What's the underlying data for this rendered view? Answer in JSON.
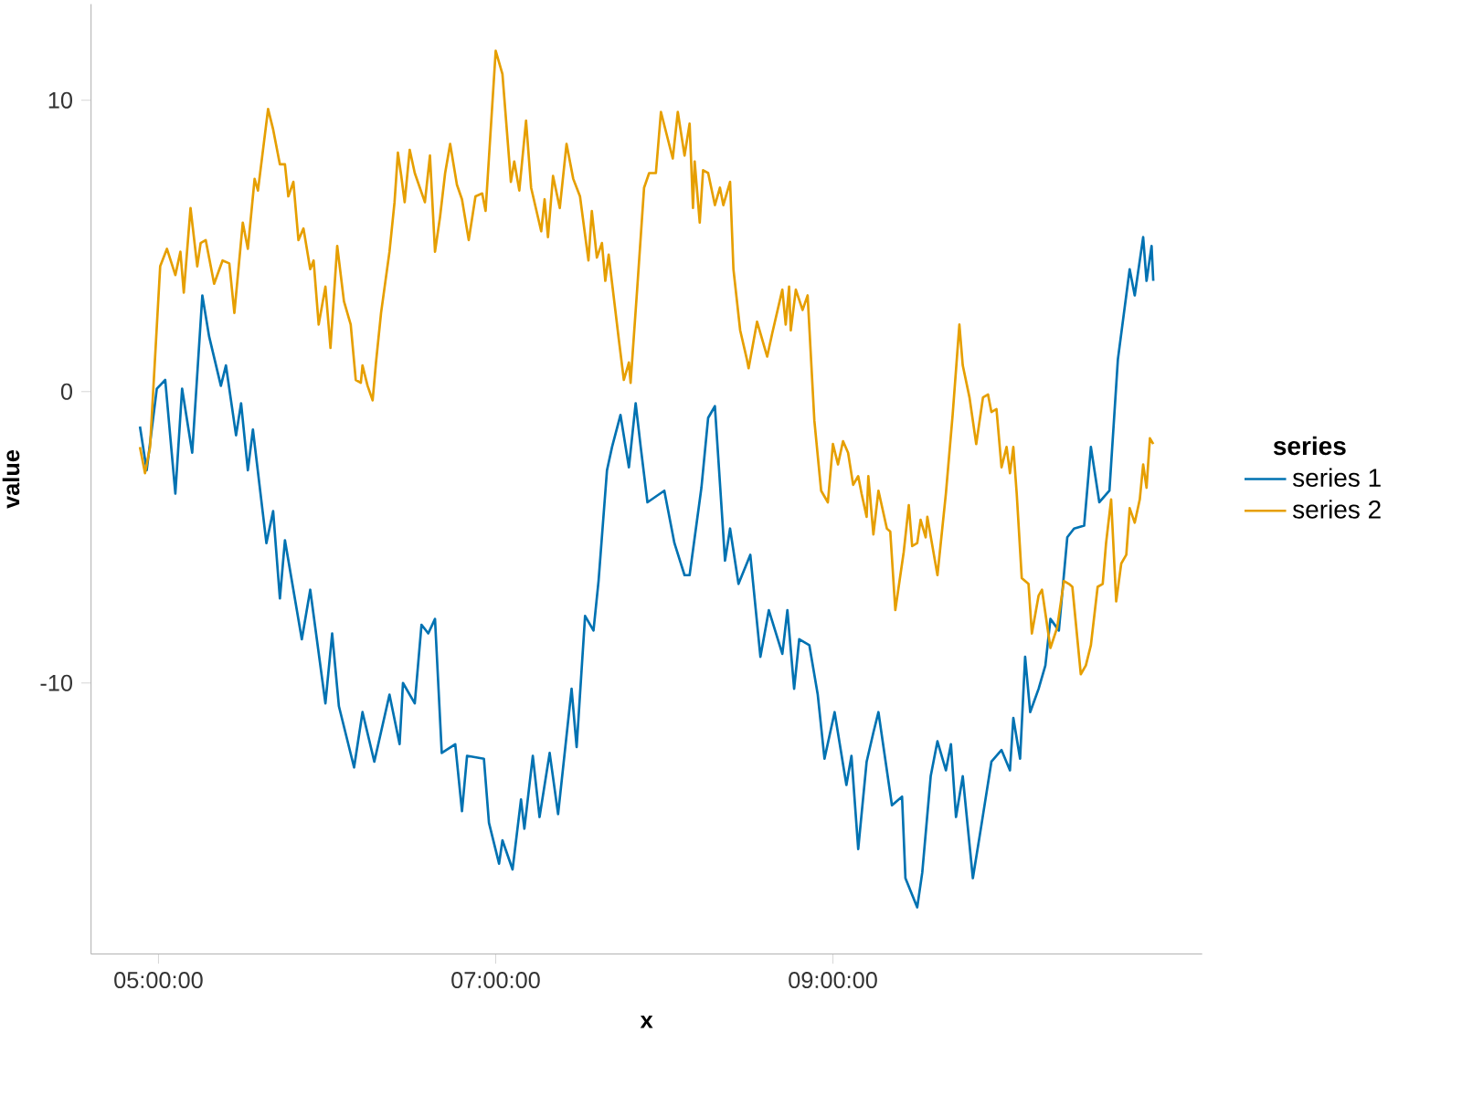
{
  "chart_data": {
    "type": "line",
    "xlabel": "x",
    "ylabel": "value",
    "legend_title": "series",
    "legend": "right",
    "xlim": [
      4.6,
      11.19
    ],
    "ylim": [
      -19.3,
      13.3
    ],
    "xticks": [
      {
        "value": 5,
        "label": "05:00:00"
      },
      {
        "value": 7,
        "label": "07:00:00"
      },
      {
        "value": 9,
        "label": "09:00:00"
      }
    ],
    "yticks": [
      -10,
      0,
      10
    ],
    "series": [
      {
        "name": "series 1",
        "color": "#0072b2",
        "x": [
          4.89,
          4.93,
          4.99,
          5.04,
          5.1,
          5.14,
          5.2,
          5.26,
          5.3,
          5.37,
          5.4,
          5.46,
          5.49,
          5.53,
          5.56,
          5.64,
          5.68,
          5.72,
          5.75,
          5.85,
          5.9,
          5.99,
          6.03,
          6.07,
          6.16,
          6.21,
          6.28,
          6.37,
          6.43,
          6.45,
          6.52,
          6.56,
          6.6,
          6.64,
          6.68,
          6.76,
          6.8,
          6.83,
          6.93,
          6.96,
          7.02,
          7.04,
          7.1,
          7.15,
          7.17,
          7.22,
          7.26,
          7.32,
          7.37,
          7.45,
          7.48,
          7.53,
          7.58,
          7.61,
          7.66,
          7.69,
          7.74,
          7.79,
          7.83,
          7.86,
          7.9,
          8.0,
          8.06,
          8.12,
          8.15,
          8.22,
          8.26,
          8.3,
          8.36,
          8.39,
          8.44,
          8.51,
          8.57,
          8.62,
          8.7,
          8.73,
          8.77,
          8.8,
          8.86,
          8.91,
          8.95,
          9.01,
          9.08,
          9.11,
          9.15,
          9.2,
          9.24,
          9.27,
          9.35,
          9.41,
          9.43,
          9.5,
          9.53,
          9.58,
          9.62,
          9.67,
          9.7,
          9.73,
          9.77,
          9.83,
          9.88,
          9.94,
          10.0,
          10.05,
          10.07,
          10.11,
          10.14,
          10.17,
          10.22,
          10.26,
          10.29,
          10.34,
          10.39,
          10.43,
          10.49,
          10.53,
          10.58,
          10.64,
          10.69,
          10.76,
          10.79,
          10.84,
          10.86,
          10.89,
          10.9
        ],
        "values": [
          -1.2,
          -2.7,
          0.1,
          0.4,
          -3.5,
          0.1,
          -2.1,
          3.3,
          1.9,
          0.2,
          0.9,
          -1.5,
          -0.4,
          -2.7,
          -1.3,
          -5.2,
          -4.1,
          -7.1,
          -5.1,
          -8.5,
          -6.8,
          -10.7,
          -8.3,
          -10.8,
          -12.9,
          -11.0,
          -12.7,
          -10.4,
          -12.1,
          -10.0,
          -10.7,
          -8.0,
          -8.3,
          -7.8,
          -12.4,
          -12.1,
          -14.4,
          -12.5,
          -12.6,
          -14.8,
          -16.2,
          -15.4,
          -16.4,
          -14.0,
          -15.0,
          -12.5,
          -14.6,
          -12.4,
          -14.5,
          -10.2,
          -12.2,
          -7.7,
          -8.2,
          -6.5,
          -2.7,
          -1.9,
          -0.8,
          -2.6,
          -0.4,
          -1.9,
          -3.8,
          -3.4,
          -5.2,
          -6.3,
          -6.3,
          -3.3,
          -0.9,
          -0.5,
          -5.8,
          -4.7,
          -6.6,
          -5.6,
          -9.1,
          -7.5,
          -9.0,
          -7.5,
          -10.2,
          -8.5,
          -8.7,
          -10.4,
          -12.6,
          -11.0,
          -13.5,
          -12.5,
          -15.7,
          -12.7,
          -11.7,
          -11.0,
          -14.2,
          -13.9,
          -16.7,
          -17.7,
          -16.5,
          -13.2,
          -12.0,
          -13.0,
          -12.1,
          -14.6,
          -13.2,
          -16.7,
          -14.9,
          -12.7,
          -12.3,
          -13.0,
          -11.2,
          -12.6,
          -9.1,
          -11.0,
          -10.2,
          -9.4,
          -7.8,
          -8.2,
          -5.0,
          -4.7,
          -4.6,
          -1.9,
          -3.8,
          -3.4,
          1.1,
          4.2,
          3.3,
          5.3,
          3.8,
          5.0,
          3.8
        ]
      },
      {
        "name": "series 2",
        "color": "#e69f00",
        "x": [
          4.89,
          4.92,
          4.95,
          5.01,
          5.05,
          5.1,
          5.13,
          5.15,
          5.19,
          5.23,
          5.25,
          5.28,
          5.33,
          5.38,
          5.42,
          5.45,
          5.5,
          5.53,
          5.57,
          5.59,
          5.65,
          5.68,
          5.72,
          5.75,
          5.77,
          5.8,
          5.83,
          5.86,
          5.9,
          5.92,
          5.95,
          5.99,
          6.02,
          6.06,
          6.1,
          6.14,
          6.17,
          6.2,
          6.21,
          6.24,
          6.27,
          6.29,
          6.32,
          6.37,
          6.4,
          6.42,
          6.44,
          6.46,
          6.49,
          6.52,
          6.58,
          6.61,
          6.64,
          6.67,
          6.7,
          6.73,
          6.77,
          6.8,
          6.84,
          6.88,
          6.92,
          6.94,
          7.0,
          7.04,
          7.09,
          7.11,
          7.14,
          7.18,
          7.21,
          7.27,
          7.29,
          7.31,
          7.34,
          7.38,
          7.42,
          7.46,
          7.5,
          7.55,
          7.57,
          7.6,
          7.63,
          7.65,
          7.67,
          7.73,
          7.76,
          7.79,
          7.8,
          7.84,
          7.88,
          7.91,
          7.95,
          7.98,
          8.05,
          8.08,
          8.12,
          8.15,
          8.17,
          8.18,
          8.21,
          8.23,
          8.26,
          8.3,
          8.33,
          8.35,
          8.39,
          8.41,
          8.45,
          8.49,
          8.5,
          8.55,
          8.61,
          8.64,
          8.7,
          8.72,
          8.74,
          8.75,
          8.78,
          8.82,
          8.85,
          8.89,
          8.93,
          8.97,
          9.0,
          9.03,
          9.06,
          9.09,
          9.12,
          9.15,
          9.17,
          9.2,
          9.21,
          9.24,
          9.27,
          9.32,
          9.34,
          9.37,
          9.42,
          9.45,
          9.47,
          9.5,
          9.52,
          9.55,
          9.56,
          9.62,
          9.67,
          9.71,
          9.75,
          9.77,
          9.81,
          9.85,
          9.89,
          9.92,
          9.94,
          9.97,
          10.0,
          10.03,
          10.05,
          10.07,
          10.09,
          10.12,
          10.16,
          10.18,
          10.22,
          10.24,
          10.29,
          10.33,
          10.37,
          10.4,
          10.42,
          10.47,
          10.5,
          10.53,
          10.57,
          10.6,
          10.62,
          10.65,
          10.68,
          10.71,
          10.74,
          10.76,
          10.79,
          10.82,
          10.84,
          10.86,
          10.88,
          10.9
        ],
        "values": [
          -1.9,
          -2.8,
          -1.9,
          4.3,
          4.9,
          4.0,
          4.8,
          3.4,
          6.3,
          4.3,
          5.1,
          5.2,
          3.7,
          4.5,
          4.4,
          2.7,
          5.8,
          4.9,
          7.3,
          6.9,
          9.7,
          9.0,
          7.8,
          7.8,
          6.7,
          7.2,
          5.2,
          5.6,
          4.2,
          4.5,
          2.3,
          3.6,
          1.5,
          5.0,
          3.1,
          2.3,
          0.4,
          0.3,
          0.9,
          0.2,
          -0.3,
          1.0,
          2.7,
          4.8,
          6.5,
          8.2,
          7.4,
          6.5,
          8.3,
          7.5,
          6.5,
          8.1,
          4.8,
          6.0,
          7.5,
          8.5,
          7.1,
          6.6,
          5.2,
          6.7,
          6.8,
          6.2,
          11.7,
          10.9,
          7.2,
          7.9,
          6.9,
          9.3,
          7.0,
          5.5,
          6.6,
          5.3,
          7.4,
          6.3,
          8.5,
          7.3,
          6.7,
          4.5,
          6.2,
          4.6,
          5.1,
          3.8,
          4.7,
          1.8,
          0.4,
          1.0,
          0.3,
          3.6,
          7.0,
          7.5,
          7.5,
          9.6,
          8.0,
          9.6,
          8.1,
          9.2,
          6.3,
          7.9,
          5.8,
          7.6,
          7.5,
          6.4,
          7.0,
          6.4,
          7.2,
          4.2,
          2.1,
          1.1,
          0.8,
          2.4,
          1.2,
          2.0,
          3.5,
          2.3,
          3.6,
          2.1,
          3.5,
          2.8,
          3.3,
          -1.0,
          -3.4,
          -3.8,
          -1.8,
          -2.5,
          -1.7,
          -2.1,
          -3.2,
          -2.9,
          -3.5,
          -4.3,
          -2.9,
          -4.9,
          -3.4,
          -4.7,
          -4.8,
          -7.5,
          -5.5,
          -3.9,
          -5.3,
          -5.2,
          -4.4,
          -5.0,
          -4.3,
          -6.3,
          -3.5,
          -0.8,
          2.3,
          0.9,
          -0.2,
          -1.8,
          -0.2,
          -0.1,
          -0.7,
          -0.6,
          -2.6,
          -1.9,
          -2.8,
          -1.9,
          -3.5,
          -6.4,
          -6.6,
          -8.3,
          -7.0,
          -6.8,
          -8.8,
          -8.1,
          -6.5,
          -6.6,
          -6.7,
          -9.7,
          -9.4,
          -8.7,
          -6.7,
          -6.6,
          -5.2,
          -3.7,
          -7.2,
          -5.9,
          -5.6,
          -4.0,
          -4.5,
          -3.7,
          -2.5,
          -3.3,
          -1.6,
          -1.8
        ]
      }
    ]
  }
}
